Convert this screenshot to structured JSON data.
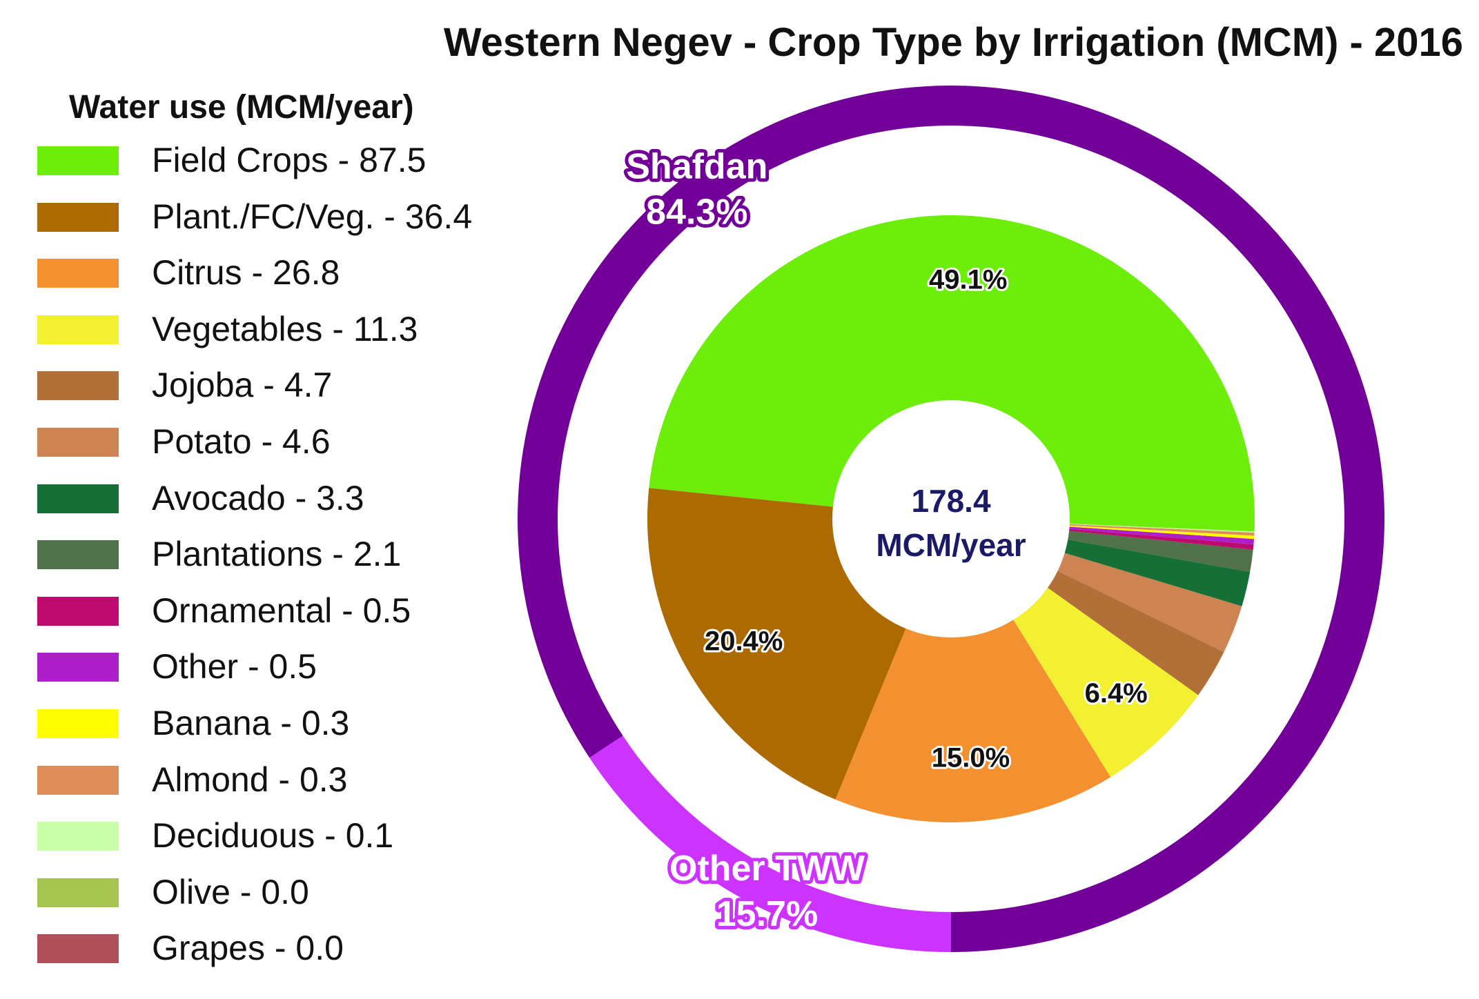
{
  "chart_data": {
    "type": "pie",
    "title": "Western Negev - Crop Type by Irrigation (MCM) - 2016",
    "legend_title": "Water use (MCM/year)",
    "legend_placement": "left",
    "center_label": [
      "178.4",
      "MCM/year"
    ],
    "inner_series": {
      "slices": [
        {
          "label": "Field Crops - 87.5",
          "value": 87.5,
          "color": "#6cee0a",
          "pct_label": "49.1%"
        },
        {
          "label": "Plant./FC/Veg. - 36.4",
          "value": 36.4,
          "color": "#ad6a00",
          "pct_label": "20.4%"
        },
        {
          "label": "Citrus - 26.8",
          "value": 26.8,
          "color": "#f39130",
          "pct_label": "15.0%"
        },
        {
          "label": "Vegetables - 11.3",
          "value": 11.3,
          "color": "#f2f030",
          "pct_label": "6.4%"
        },
        {
          "label": "Jojoba - 4.7",
          "value": 4.7,
          "color": "#b07038",
          "pct_label": ""
        },
        {
          "label": "Potato - 4.6",
          "value": 4.6,
          "color": "#cd8352",
          "pct_label": ""
        },
        {
          "label": "Avocado - 3.3",
          "value": 3.3,
          "color": "#156f36",
          "pct_label": ""
        },
        {
          "label": "Plantations - 2.1",
          "value": 2.1,
          "color": "#51714a",
          "pct_label": ""
        },
        {
          "label": "Ornamental - 0.5",
          "value": 0.5,
          "color": "#be0a6f",
          "pct_label": ""
        },
        {
          "label": "Other - 0.5",
          "value": 0.5,
          "color": "#ac1fca",
          "pct_label": ""
        },
        {
          "label": "Banana - 0.3",
          "value": 0.3,
          "color": "#ffff00",
          "pct_label": ""
        },
        {
          "label": "Almond - 0.3",
          "value": 0.3,
          "color": "#df8e5a",
          "pct_label": ""
        },
        {
          "label": "Deciduous - 0.1",
          "value": 0.1,
          "color": "#ccffaa",
          "pct_label": ""
        },
        {
          "label": "Olive - 0.0",
          "value": 0.0,
          "color": "#a6c550",
          "pct_label": ""
        },
        {
          "label": "Grapes - 0.0",
          "value": 0.0,
          "color": "#b14f5b",
          "pct_label": ""
        }
      ]
    },
    "outer_series": {
      "slices": [
        {
          "label": "Shafdan",
          "value": 84.3,
          "color": "#720098",
          "pct_label": "84.3%"
        },
        {
          "label": "Other TWW",
          "value": 15.7,
          "color": "#cc33ff",
          "pct_label": "15.7%"
        }
      ]
    }
  }
}
